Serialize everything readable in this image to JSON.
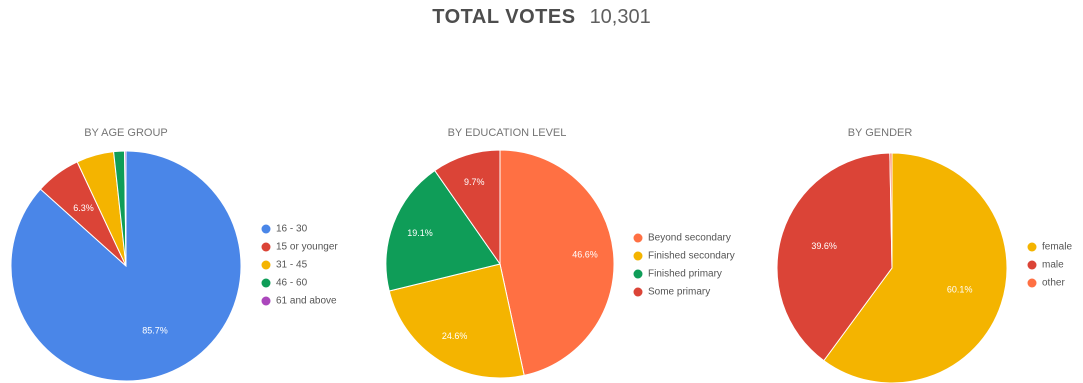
{
  "header": {
    "label": "TOTAL VOTES",
    "value": "10,301"
  },
  "chart_data": [
    {
      "type": "pie",
      "title": "BY AGE GROUP",
      "slices": [
        {
          "name": "16 - 30",
          "value": 85.7,
          "label": "85.7%",
          "color": "#4a86e8"
        },
        {
          "name": "15 or younger",
          "value": 6.3,
          "label": "6.3%",
          "color": "#db4437"
        },
        {
          "name": "31 - 45",
          "value": 5.2,
          "label": "",
          "color": "#f4b400"
        },
        {
          "name": "46 - 60",
          "value": 1.5,
          "label": "",
          "color": "#0f9d58"
        },
        {
          "name": "61 and above",
          "value": 0.2,
          "label": "",
          "color": "#ab47bc"
        }
      ],
      "legend_position": "right"
    },
    {
      "type": "pie",
      "title": "BY EDUCATION LEVEL",
      "slices": [
        {
          "name": "Beyond secondary",
          "value": 46.6,
          "label": "46.6%",
          "color": "#ff7043"
        },
        {
          "name": "Finished secondary",
          "value": 24.6,
          "label": "24.6%",
          "color": "#f4b400"
        },
        {
          "name": "Finished primary",
          "value": 19.1,
          "label": "19.1%",
          "color": "#0f9d58"
        },
        {
          "name": "Some primary",
          "value": 9.7,
          "label": "9.7%",
          "color": "#db4437"
        }
      ],
      "legend_position": "right"
    },
    {
      "type": "pie",
      "title": "BY GENDER",
      "slices": [
        {
          "name": "female",
          "value": 60.1,
          "label": "60.1%",
          "color": "#f4b400"
        },
        {
          "name": "male",
          "value": 39.6,
          "label": "39.6%",
          "color": "#db4437"
        },
        {
          "name": "other",
          "value": 0.3,
          "label": "",
          "color": "#ff7043"
        }
      ],
      "legend_position": "right"
    }
  ]
}
